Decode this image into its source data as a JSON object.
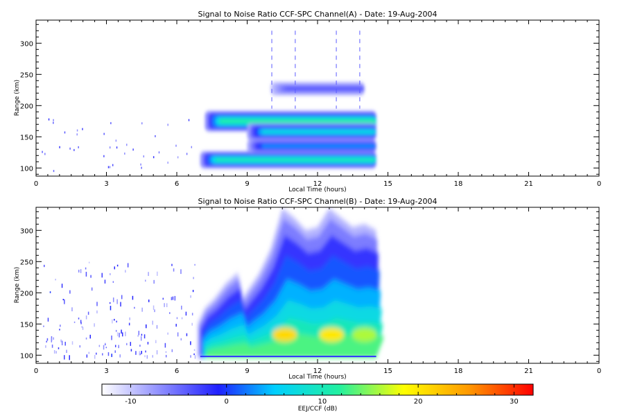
{
  "chart_data": [
    {
      "type": "heatmap",
      "title": "Signal to Noise Ratio CCF-SPC Channel(A) - Date: 19-Aug-2004",
      "xlabel": "Local Time (hours)",
      "ylabel": "Range (km)",
      "xlim": [
        0,
        24
      ],
      "ylim": [
        87,
        337
      ],
      "x_ticks": [
        "0",
        "3",
        "6",
        "9",
        "12",
        "15",
        "18",
        "21",
        "0"
      ],
      "y_ticks": [
        100,
        150,
        200,
        250,
        300
      ],
      "data_time_range": [
        7.0,
        14.5
      ],
      "regions": [
        {
          "t0": 7.2,
          "t1": 14.5,
          "range_center": 175,
          "range_width": 12,
          "peak_snr_db": 11
        },
        {
          "t0": 7.0,
          "t1": 14.5,
          "range_center": 113,
          "range_width": 10,
          "peak_snr_db": 10
        },
        {
          "t0": 9.0,
          "t1": 14.5,
          "range_center": 158,
          "range_width": 10,
          "peak_snr_db": 7
        },
        {
          "t0": 9.0,
          "t1": 14.5,
          "range_center": 135,
          "range_width": 8,
          "peak_snr_db": 3
        },
        {
          "t0": 10.0,
          "t1": 14.0,
          "range_center": 227,
          "range_width": 8,
          "peak_snr_db": -4
        }
      ]
    },
    {
      "type": "heatmap",
      "title": "Signal to Noise Ratio CCF-SPC Channel(B) - Date: 19-Aug-2004",
      "xlabel": "Local Time (hours)",
      "ylabel": "Range (km)",
      "xlim": [
        0,
        24
      ],
      "ylim": [
        87,
        337
      ],
      "x_ticks": [
        "0",
        "3",
        "6",
        "9",
        "12",
        "15",
        "18",
        "21",
        "0"
      ],
      "y_ticks": [
        100,
        150,
        200,
        250,
        300
      ],
      "data_time_range": [
        6.9,
        14.5
      ],
      "upper_boundary_km": [
        [
          6.9,
          150
        ],
        [
          7.2,
          175
        ],
        [
          7.6,
          190
        ],
        [
          8.1,
          215
        ],
        [
          8.6,
          232
        ],
        [
          8.8,
          190
        ],
        [
          9.0,
          202
        ],
        [
          9.5,
          230
        ],
        [
          10.0,
          270
        ],
        [
          10.5,
          335
        ],
        [
          11.0,
          320
        ],
        [
          11.5,
          300
        ],
        [
          12.0,
          305
        ],
        [
          12.5,
          335
        ],
        [
          13.0,
          320
        ],
        [
          13.5,
          305
        ],
        [
          14.0,
          310
        ],
        [
          14.5,
          300
        ]
      ],
      "peak_snr_db": 21,
      "peak_range_km": 133
    }
  ],
  "colorbar": {
    "label": "EEJ/CCF (dB)",
    "range": [
      -13,
      32
    ],
    "ticks": [
      -10,
      0,
      10,
      20,
      30
    ],
    "colormap": [
      "#ffffff",
      "#3a3aff",
      "#00e6e6",
      "#ffff00",
      "#ff0000"
    ]
  }
}
